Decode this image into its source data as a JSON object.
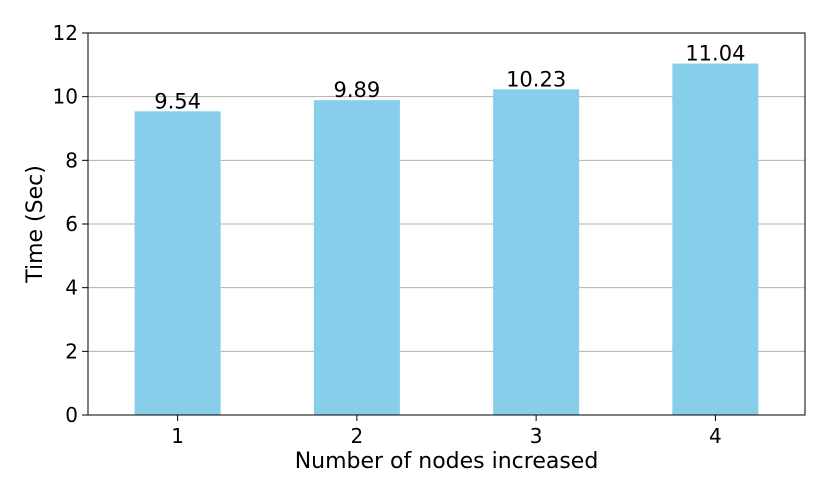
{
  "chart_data": {
    "type": "bar",
    "categories": [
      "1",
      "2",
      "3",
      "4"
    ],
    "values": [
      9.54,
      9.89,
      10.23,
      11.04
    ],
    "data_labels": [
      "9.54",
      "9.89",
      "10.23",
      "11.04"
    ],
    "title": "",
    "xlabel": "Number of nodes increased",
    "ylabel": "Time (Sec)",
    "ylim": [
      0,
      12
    ],
    "yticks": [
      0,
      2,
      4,
      6,
      8,
      10,
      12
    ],
    "ytick_labels": [
      "0",
      "2",
      "4",
      "6",
      "8",
      "10",
      "12"
    ],
    "grid": "horizontal",
    "bar_color": "#87ceeb",
    "grid_color": "#b0b0b0",
    "axis_color": "#000000"
  }
}
